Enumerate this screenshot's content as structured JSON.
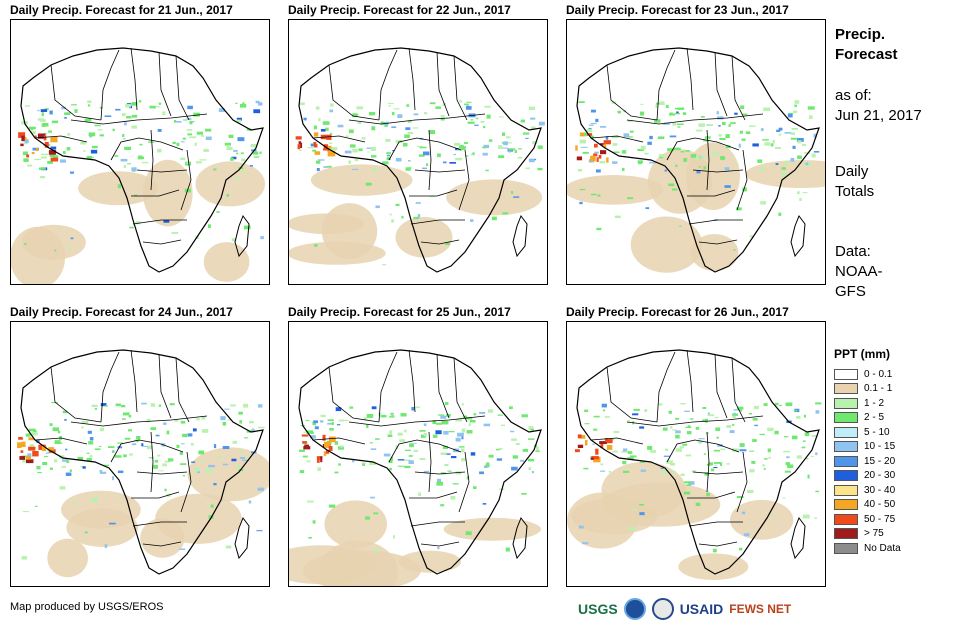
{
  "panels": [
    {
      "title": "Daily Precip. Forecast for 21 Jun., 2017"
    },
    {
      "title": "Daily Precip. Forecast for 22 Jun., 2017"
    },
    {
      "title": "Daily Precip. Forecast for 23 Jun., 2017"
    },
    {
      "title": "Daily Precip. Forecast for 24 Jun., 2017"
    },
    {
      "title": "Daily Precip. Forecast for 25 Jun., 2017"
    },
    {
      "title": "Daily Precip. Forecast for 26 Jun., 2017"
    }
  ],
  "side": {
    "title_line1": "Precip.",
    "title_line2": "Forecast",
    "asof_line1": "as of:",
    "asof_line2": "Jun 21, 2017",
    "totals_line1": "Daily",
    "totals_line2": "Totals",
    "data_line1": "Data:",
    "data_line2": "NOAA-",
    "data_line3": "GFS"
  },
  "legend": {
    "title": "PPT (mm)",
    "items": [
      {
        "label": "0 - 0.1",
        "color": "#ffffff"
      },
      {
        "label": "0.1 - 1",
        "color": "#e8d2b0"
      },
      {
        "label": "1 - 2",
        "color": "#b9f2ae"
      },
      {
        "label": "2 - 5",
        "color": "#6ee86e"
      },
      {
        "label": "5 - 10",
        "color": "#bfeef8"
      },
      {
        "label": "10 - 15",
        "color": "#8fc3f0"
      },
      {
        "label": "15 - 20",
        "color": "#4f95ea"
      },
      {
        "label": "20 - 30",
        "color": "#1e5fe0"
      },
      {
        "label": "30 - 40",
        "color": "#fbe48a"
      },
      {
        "label": "40 - 50",
        "color": "#f5a623"
      },
      {
        "label": "50 - 75",
        "color": "#f04a1c"
      },
      {
        "label": "> 75",
        "color": "#a01c1c"
      },
      {
        "label": "No Data",
        "color": "#8c8c8c"
      }
    ]
  },
  "footer": {
    "credit": "Map produced by USGS/EROS"
  },
  "logos": {
    "usgs": "USGS",
    "noaa": "NOAA",
    "usaid": "USAID",
    "fews": "FEWS NET"
  }
}
